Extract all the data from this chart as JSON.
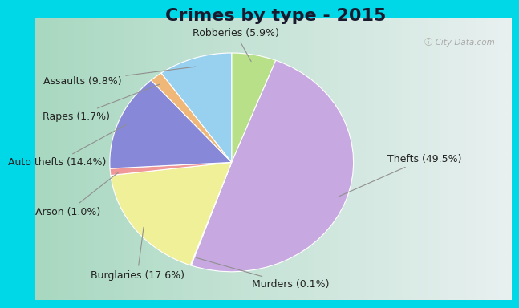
{
  "title": "Crimes by type - 2015",
  "labels_ordered": [
    "Robberies",
    "Thefts",
    "Murders",
    "Burglaries",
    "Arson",
    "Auto thefts",
    "Rapes",
    "Assaults"
  ],
  "values_ordered": [
    5.9,
    49.5,
    0.1,
    17.6,
    1.0,
    14.4,
    1.7,
    9.8
  ],
  "colors_ordered": [
    "#b8e088",
    "#c8a8e0",
    "#f5c8c8",
    "#f0f098",
    "#f09898",
    "#8888d8",
    "#f0b878",
    "#98d0f0"
  ],
  "label_display": {
    "Thefts": "Thefts (49.5%)",
    "Burglaries": "Burglaries (17.6%)",
    "Auto thefts": "Auto thefts (14.4%)",
    "Assaults": "Assaults (9.8%)",
    "Robberies": "Robberies (5.9%)",
    "Rapes": "Rapes (1.7%)",
    "Arson": "Arson (1.0%)",
    "Murders": "Murders (0.1%)"
  },
  "bg_cyan": "#00d8e8",
  "bg_grad_left": "#a8d8c0",
  "bg_grad_right": "#e8f0f0",
  "title_fontsize": 16,
  "label_fontsize": 9
}
